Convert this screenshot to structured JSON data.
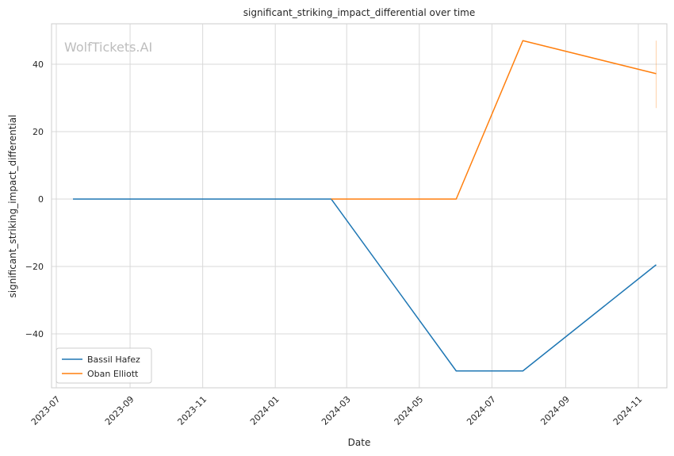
{
  "chart_data": {
    "type": "line",
    "title": "significant_striking_impact_differential over time",
    "xlabel": "Date",
    "ylabel": "significant_striking_impact_differential",
    "watermark": "WolfTickets.AI",
    "x_ticks": [
      "2023-07",
      "2023-09",
      "2023-11",
      "2024-01",
      "2024-03",
      "2024-05",
      "2024-07",
      "2024-09",
      "2024-11"
    ],
    "y_ticks": [
      -40,
      -20,
      0,
      20,
      40
    ],
    "y_tick_labels": [
      "−40",
      "−20",
      "0",
      "20",
      "40"
    ],
    "xlim": [
      "2023-06-27",
      "2024-11-25"
    ],
    "ylim": [
      -56,
      52
    ],
    "grid": true,
    "legend_position": "lower-left",
    "series": [
      {
        "name": "Bassil Hafez",
        "color": "#1f77b4",
        "points": [
          {
            "x": "2023-07-15",
            "y": 0
          },
          {
            "x": "2024-02-17",
            "y": 0
          },
          {
            "x": "2024-06-01",
            "y": -51
          },
          {
            "x": "2024-07-27",
            "y": -51
          },
          {
            "x": "2024-11-16",
            "y": -19.5
          }
        ]
      },
      {
        "name": "Oban Elliott",
        "color": "#ff7f0e",
        "points": [
          {
            "x": "2024-02-17",
            "y": 0
          },
          {
            "x": "2024-06-01",
            "y": 0
          },
          {
            "x": "2024-07-27",
            "y": 47
          },
          {
            "x": "2024-11-16",
            "y": 37.2
          }
        ],
        "error_bar": {
          "x": "2024-11-16",
          "low": 27,
          "high": 47
        }
      }
    ]
  }
}
